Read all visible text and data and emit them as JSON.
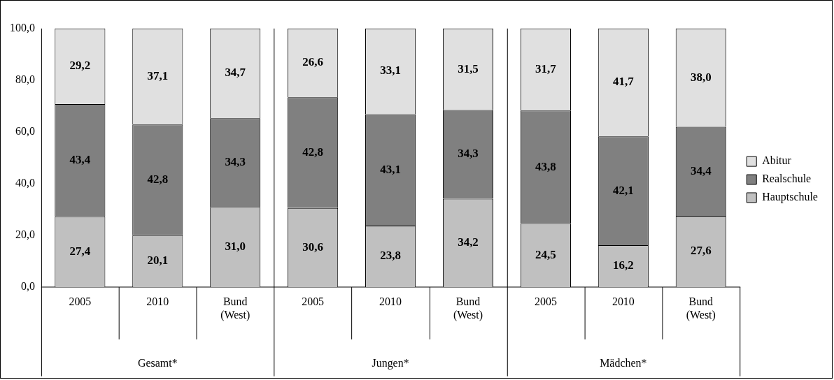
{
  "chart_data": {
    "type": "bar",
    "stacked": true,
    "categories": [
      "2005",
      "2010",
      "Bund (West)",
      "2005",
      "2010",
      "Bund (West)",
      "2005",
      "2010",
      "Bund (West)"
    ],
    "series": [
      {
        "name": "Hauptschule",
        "color": "#c0c0c0",
        "values": [
          27.4,
          20.1,
          31.0,
          30.6,
          23.8,
          34.2,
          24.5,
          16.2,
          27.6
        ],
        "value_labels": [
          "27,4",
          "20,1",
          "31,0",
          "30,6",
          "23,8",
          "34,2",
          "24,5",
          "16,2",
          "27,6"
        ]
      },
      {
        "name": "Realschule",
        "color": "#808080",
        "values": [
          43.4,
          42.8,
          34.3,
          42.8,
          43.1,
          34.3,
          43.8,
          42.1,
          34.4
        ],
        "value_labels": [
          "43,4",
          "42,8",
          "34,3",
          "42,8",
          "43,1",
          "34,3",
          "43,8",
          "42,1",
          "34,4"
        ]
      },
      {
        "name": "Abitur",
        "color": "#e0e0e0",
        "values": [
          29.2,
          37.1,
          34.7,
          26.6,
          33.1,
          31.5,
          31.7,
          41.7,
          38.0
        ],
        "value_labels": [
          "29,2",
          "37,1",
          "34,7",
          "26,6",
          "33,1",
          "31,5",
          "31,7",
          "41,7",
          "38,0"
        ]
      }
    ],
    "ylim": [
      0,
      100
    ],
    "yticks": [
      {
        "value": 0,
        "label": "0,0"
      },
      {
        "value": 20,
        "label": "20,0"
      },
      {
        "value": 40,
        "label": "40,0"
      },
      {
        "value": 60,
        "label": "60,0"
      },
      {
        "value": 80,
        "label": "80,0"
      },
      {
        "value": 100,
        "label": "100,0"
      }
    ],
    "annotations": [
      "Gesamt*",
      "Jungen*",
      "Mädchen*"
    ],
    "legend": "right",
    "grid": false
  }
}
